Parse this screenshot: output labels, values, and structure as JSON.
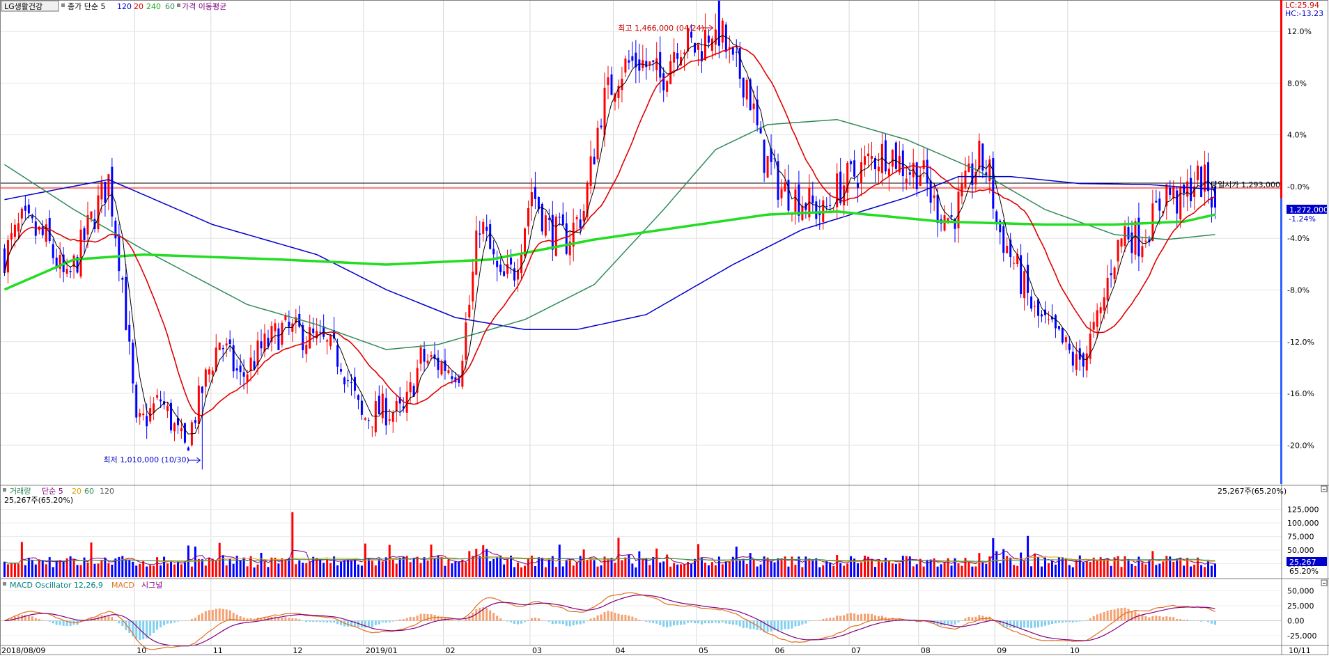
{
  "header": {
    "stock_name": "LG생활건강",
    "price_label": "종가 단순 5",
    "ma_periods": [
      "120",
      "20",
      "240",
      "60"
    ],
    "ma_suffix": "가격 이동평균",
    "lc_label": "LC:25.94",
    "hc_label": "HC:-13.23"
  },
  "annotations": {
    "high_label": "최고 1,466,000 (04/24)",
    "low_label": "최저 1,010,000 (10/30)",
    "open_label": "당일시가 1,293,000",
    "current_price_label": "1,272,000",
    "current_pct_label": "-1.24%"
  },
  "volume_panel": {
    "title": "거래량",
    "ma_label": "단순 5",
    "ma_periods": [
      "20",
      "60",
      "120"
    ],
    "current_label": "25,267주(65.20%)",
    "current_value_label": "25,267",
    "current_pct_label": "65.20%"
  },
  "macd_panel": {
    "title": "MACD Oscillator 12,26,9",
    "macd_label": "MACD",
    "signal_label": "시그널"
  },
  "colors": {
    "up": "#ff0000",
    "down": "#0000ff",
    "ma5": "#000000",
    "ma20": "#e00000",
    "ma60": "#2e8b57",
    "ma120": "#0000cc",
    "ma240": "#22dd22",
    "macd_line": "#e07020",
    "signal_line": "#800080",
    "osc_pos": "#f4a070",
    "osc_neg": "#80d0f0"
  },
  "chart_data": [
    {
      "type": "candlestick",
      "name": "price",
      "x_ticks": [
        "2018/08/09",
        "10",
        "11",
        "12",
        "2019/01",
        "02",
        "03",
        "04",
        "05",
        "06",
        "07",
        "08",
        "09",
        "10",
        "10/11"
      ],
      "y_ticks": [
        "12.0%",
        "8.0%",
        "4.0%",
        "-0.0%",
        "-4.0%",
        "-8.0%",
        "-12.0%",
        "-16.0%",
        "-20.0%"
      ],
      "ylim_pct": [
        -23,
        14
      ],
      "reference_price": 1293000,
      "high": {
        "price": 1466000,
        "date": "04/24"
      },
      "low": {
        "price": 1010000,
        "date": "10/30"
      },
      "last_close": 1272000,
      "waypoints": [
        [
          0,
          1225000
        ],
        [
          5,
          1255000
        ],
        [
          12,
          1240000
        ],
        [
          18,
          1195000
        ],
        [
          24,
          1250000
        ],
        [
          30,
          1300000
        ],
        [
          34,
          1200000
        ],
        [
          38,
          1050000
        ],
        [
          45,
          1080000
        ],
        [
          52,
          1030000
        ],
        [
          57,
          1090000
        ],
        [
          62,
          1140000
        ],
        [
          68,
          1100000
        ],
        [
          74,
          1130000
        ],
        [
          80,
          1150000
        ],
        [
          86,
          1145000
        ],
        [
          92,
          1135000
        ],
        [
          97,
          1120000
        ],
        [
          103,
          1060000
        ],
        [
          109,
          1070000
        ],
        [
          115,
          1065000
        ],
        [
          120,
          1120000
        ],
        [
          126,
          1115000
        ],
        [
          131,
          1110000
        ],
        [
          134,
          1175000
        ],
        [
          137,
          1260000
        ],
        [
          143,
          1195000
        ],
        [
          147,
          1210000
        ],
        [
          152,
          1290000
        ],
        [
          157,
          1250000
        ],
        [
          162,
          1240000
        ],
        [
          167,
          1270000
        ],
        [
          172,
          1370000
        ],
        [
          177,
          1410000
        ],
        [
          183,
          1420000
        ],
        [
          189,
          1400000
        ],
        [
          194,
          1440000
        ],
        [
          200,
          1430000
        ],
        [
          205,
          1460000
        ],
        [
          210,
          1410000
        ],
        [
          214,
          1400000
        ],
        [
          218,
          1330000
        ],
        [
          224,
          1290000
        ],
        [
          230,
          1280000
        ],
        [
          236,
          1265000
        ],
        [
          240,
          1290000
        ],
        [
          245,
          1305000
        ],
        [
          250,
          1320000
        ],
        [
          255,
          1330000
        ],
        [
          260,
          1310000
        ],
        [
          264,
          1310000
        ],
        [
          268,
          1275000
        ],
        [
          273,
          1260000
        ],
        [
          277,
          1290000
        ],
        [
          281,
          1320000
        ],
        [
          284,
          1305000
        ],
        [
          286,
          1255000
        ],
        [
          290,
          1225000
        ],
        [
          293,
          1200000
        ],
        [
          297,
          1165000
        ],
        [
          301,
          1150000
        ],
        [
          305,
          1135000
        ],
        [
          309,
          1115000
        ],
        [
          312,
          1130000
        ],
        [
          316,
          1165000
        ],
        [
          319,
          1215000
        ],
        [
          323,
          1250000
        ],
        [
          327,
          1240000
        ],
        [
          331,
          1260000
        ],
        [
          335,
          1290000
        ],
        [
          339,
          1275000
        ],
        [
          343,
          1300000
        ],
        [
          347,
          1295000
        ],
        [
          349,
          1272000
        ]
      ],
      "ma_series": [
        {
          "name": "120",
          "color": "#0000cc",
          "waypoints": [
            [
              0,
              1280000
            ],
            [
              30,
              1300000
            ],
            [
              60,
              1255000
            ],
            [
              90,
              1225000
            ],
            [
              110,
              1190000
            ],
            [
              130,
              1162000
            ],
            [
              150,
              1150000
            ],
            [
              165,
              1150000
            ],
            [
              185,
              1165000
            ],
            [
              210,
              1215000
            ],
            [
              230,
              1250000
            ],
            [
              260,
              1282000
            ],
            [
              275,
              1303000
            ],
            [
              290,
              1303000
            ],
            [
              310,
              1296000
            ],
            [
              330,
              1295000
            ],
            [
              349,
              1290000
            ]
          ]
        },
        {
          "name": "60",
          "color": "#2e8b57",
          "waypoints": [
            [
              0,
              1315000
            ],
            [
              20,
              1270000
            ],
            [
              40,
              1230000
            ],
            [
              70,
              1175000
            ],
            [
              90,
              1155000
            ],
            [
              110,
              1130000
            ],
            [
              125,
              1135000
            ],
            [
              150,
              1160000
            ],
            [
              170,
              1195000
            ],
            [
              190,
              1270000
            ],
            [
              205,
              1330000
            ],
            [
              220,
              1355000
            ],
            [
              240,
              1360000
            ],
            [
              260,
              1340000
            ],
            [
              280,
              1310000
            ],
            [
              300,
              1270000
            ],
            [
              320,
              1245000
            ],
            [
              335,
              1240000
            ],
            [
              349,
              1245000
            ]
          ]
        },
        {
          "name": "240",
          "color": "#22dd22",
          "waypoints": [
            [
              0,
              1190000
            ],
            [
              20,
              1220000
            ],
            [
              40,
              1225000
            ],
            [
              80,
              1220000
            ],
            [
              110,
              1215000
            ],
            [
              140,
              1220000
            ],
            [
              170,
              1240000
            ],
            [
              200,
              1255000
            ],
            [
              220,
              1265000
            ],
            [
              240,
              1268000
            ],
            [
              270,
              1258000
            ],
            [
              300,
              1255000
            ],
            [
              320,
              1255000
            ],
            [
              340,
              1258000
            ],
            [
              349,
              1265000
            ]
          ]
        }
      ]
    },
    {
      "type": "bar",
      "name": "volume",
      "y_ticks": [
        "125,000",
        "100,000",
        "75,000",
        "50,000",
        "25,000"
      ],
      "ylim": [
        0,
        150000
      ],
      "last_value": 25267
    },
    {
      "type": "line",
      "name": "macd",
      "y_ticks": [
        "50,000",
        "25,000",
        "0.00",
        "-25,000"
      ],
      "ylim": [
        -40000,
        62000
      ]
    }
  ],
  "footer": {
    "x_axis_ticks": [
      "2018/08/09",
      "10",
      "11",
      "12",
      "2019/01",
      "02",
      "03",
      "04",
      "05",
      "06",
      "07",
      "08",
      "09",
      "10",
      "10/11"
    ]
  }
}
